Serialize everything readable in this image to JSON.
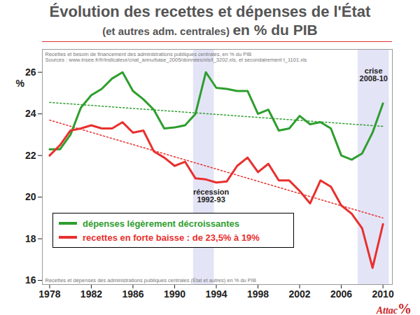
{
  "chart_data": {
    "type": "line",
    "title": "Évolution des recettes et dépenses de l'État",
    "subtitle": [
      "(et autres adm. centrales)",
      "en % du PIB"
    ],
    "source": [
      "Recettes et besoin de financement des administrations publiques centrales, en % du PIB",
      "Sources : www.insee.fr/fr/indicateur/cnat_annu/base_2005/donnees/xls/t_3202.xls, et secondairement t_1101.xls"
    ],
    "caption": "Recettes et dépenses des administrations publiques centrales (État et autres) en % du PIB",
    "y_label": "%",
    "logo": [
      "Attac",
      "%"
    ],
    "x": [
      1978,
      1979,
      1980,
      1981,
      1982,
      1983,
      1984,
      1985,
      1986,
      1987,
      1988,
      1989,
      1990,
      1991,
      1992,
      1993,
      1994,
      1995,
      1996,
      1997,
      1998,
      1999,
      2000,
      2001,
      2002,
      2003,
      2004,
      2005,
      2006,
      2007,
      2008,
      2009,
      2010
    ],
    "series": [
      {
        "name": "dépenses légèrement décroissantes",
        "color": "#2e9e2e",
        "line_style": "solid",
        "values": [
          22.3,
          22.3,
          23.0,
          24.3,
          24.9,
          25.2,
          25.7,
          26.0,
          25.1,
          24.7,
          24.2,
          23.3,
          23.35,
          23.45,
          24.0,
          26.0,
          25.25,
          25.2,
          25.1,
          25.1,
          24.0,
          24.2,
          23.2,
          23.3,
          23.9,
          23.5,
          23.6,
          23.3,
          22.0,
          21.8,
          22.1,
          23.1,
          24.5
        ],
        "trend": {
          "x": [
            1978,
            2010
          ],
          "values": [
            24.55,
            23.4
          ],
          "line_style": "dotted"
        }
      },
      {
        "name": "recettes en forte baisse : de 23,5% à 19%",
        "color": "#e8302e",
        "line_style": "solid",
        "values": [
          22.0,
          22.5,
          23.2,
          23.3,
          23.45,
          23.3,
          23.3,
          23.6,
          23.1,
          23.2,
          22.2,
          21.9,
          21.5,
          21.7,
          20.9,
          20.85,
          20.7,
          20.75,
          21.5,
          21.9,
          21.2,
          21.6,
          20.8,
          20.8,
          20.3,
          19.7,
          20.8,
          20.5,
          19.6,
          19.2,
          18.5,
          16.6,
          18.7
        ],
        "trend": {
          "x": [
            1978,
            2010
          ],
          "values": [
            23.7,
            19.0
          ],
          "line_style": "dotted"
        }
      }
    ],
    "bands": [
      {
        "x": [
          1991.8,
          1993.8
        ],
        "color": "#e4e4f7"
      },
      {
        "x": [
          2007.6,
          2010.6
        ],
        "color": "#e4e4f7"
      }
    ],
    "annotations": [
      {
        "text": "récession\n1992-93",
        "x": 1993.5,
        "y": 20.4
      },
      {
        "text": "crise\n2008-10",
        "x": 2009.1,
        "y": 26.2
      }
    ],
    "xlim": [
      1977.3,
      2010.9
    ],
    "ylim": [
      15.8,
      27.1
    ],
    "xticks": [
      1978,
      1982,
      1986,
      1990,
      1994,
      1998,
      2002,
      2006,
      2010
    ],
    "yticks": [
      16,
      18,
      20,
      22,
      24,
      26
    ],
    "grid": false,
    "legend": "bottom-left"
  }
}
